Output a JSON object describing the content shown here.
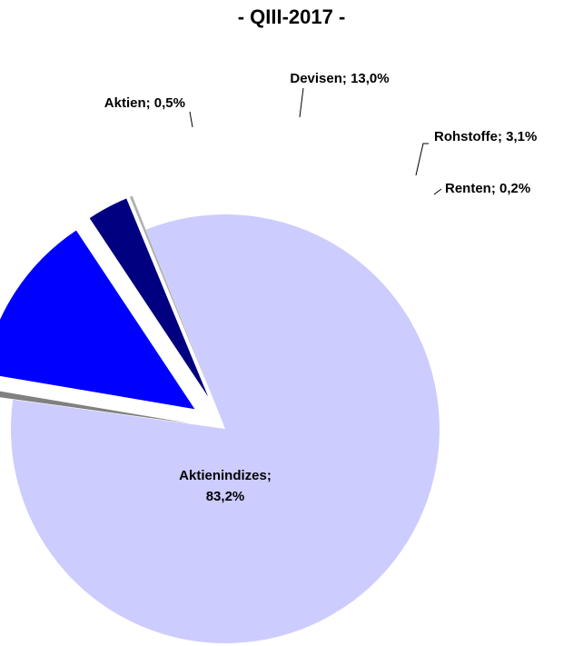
{
  "chart_data": {
    "type": "pie",
    "title": "- QIII-2017 -",
    "slices": [
      {
        "label": "Aktienindizes",
        "value": 83.2,
        "display": "Aktienindizes;|83,2%",
        "color": "#CCCCFF",
        "exploded": false
      },
      {
        "label": "Aktien",
        "value": 0.5,
        "display": "Aktien; 0,5%",
        "color": "#808080",
        "exploded": true
      },
      {
        "label": "Devisen",
        "value": 13.0,
        "display": "Devisen; 13,0%",
        "color": "#0000FF",
        "exploded": true
      },
      {
        "label": "Rohstoffe",
        "value": 3.1,
        "display": "Rohstoffe; 3,1%",
        "color": "#000080",
        "exploded": true
      },
      {
        "label": "Renten",
        "value": 0.2,
        "display": "Renten; 0,2%",
        "color": "#B0B0B0",
        "exploded": true
      }
    ],
    "legend": "none"
  }
}
